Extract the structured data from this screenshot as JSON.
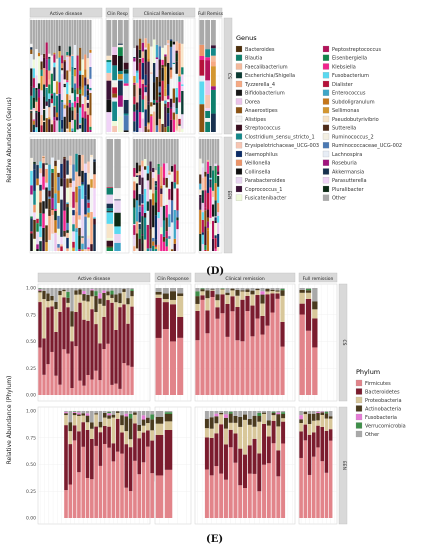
{
  "figure": {
    "panel_d_label": "(D)",
    "panel_e_label": "(E)"
  },
  "chart_data": [
    {
      "type": "bar",
      "panel": "D",
      "stacked": true,
      "ylabel": "Relative Abundance (Genus)",
      "ylim": [
        0,
        1
      ],
      "facet_columns": [
        "Active disease",
        "Clin Resp",
        "Clinical Remission",
        "Full Remiss"
      ],
      "facet_rows": [
        "CS",
        "EEN"
      ],
      "legend_title": "Genus",
      "legend_placement": "right",
      "grid": true,
      "series": [
        {
          "name": "Bacteroides",
          "color": "#4d2f0c"
        },
        {
          "name": "Blautia",
          "color": "#0e7f6b"
        },
        {
          "name": "Faecalibacterium",
          "color": "#f4b99b"
        },
        {
          "name": "Escherichia/Shigella",
          "color": "#0a3b33"
        },
        {
          "name": "Tyzzerella_4",
          "color": "#f6a983"
        },
        {
          "name": "Bifidobacterium",
          "color": "#171717"
        },
        {
          "name": "Dorea",
          "color": "#ebc3ea"
        },
        {
          "name": "Anaerostipes",
          "color": "#8b5212"
        },
        {
          "name": "Alistipes",
          "color": "#f2f2f2"
        },
        {
          "name": "Streptococcus",
          "color": "#3a0f20"
        },
        {
          "name": "Clostridium_sensu_stricto_1",
          "color": "#14888a"
        },
        {
          "name": "Erysipelotrichaceae_UCG-003",
          "color": "#f7c5b2"
        },
        {
          "name": "Haemophilus",
          "color": "#0b2b66"
        },
        {
          "name": "Veillonella",
          "color": "#ec9468"
        },
        {
          "name": "Collinsella",
          "color": "#111111"
        },
        {
          "name": "Parabacteroides",
          "color": "#e8d4f1"
        },
        {
          "name": "Coprococcus_1",
          "color": "#3b1236"
        },
        {
          "name": "Fusicatenibacter",
          "color": "#eefad8"
        },
        {
          "name": "Peptostreptococcus",
          "color": "#b3135a"
        },
        {
          "name": "Eisenbergiella",
          "color": "#12864a"
        },
        {
          "name": "Klebsiella",
          "color": "#f1238d"
        },
        {
          "name": "Fusobacterium",
          "color": "#59d9f0"
        },
        {
          "name": "Dialister",
          "color": "#b5123a"
        },
        {
          "name": "Enterococcus",
          "color": "#3ea5c7"
        },
        {
          "name": "Subdoligranulum",
          "color": "#c5761a"
        },
        {
          "name": "Sellimonas",
          "color": "#d39630"
        },
        {
          "name": "Pseudobutyrivibrio",
          "color": "#f7e4c8"
        },
        {
          "name": "Sutterella",
          "color": "#4e2a17"
        },
        {
          "name": "Ruminococcus_2",
          "color": "#f3efe2"
        },
        {
          "name": "Ruminococcaceae_UCG-002",
          "color": "#4b79b3"
        },
        {
          "name": "Lachnospira",
          "color": "#e7edf5"
        },
        {
          "name": "Roseburia",
          "color": "#a0147e"
        },
        {
          "name": "Akkermansia",
          "color": "#18314f"
        },
        {
          "name": "Parasutterella",
          "color": "#f0d3f7"
        },
        {
          "name": "Pluralibacter",
          "color": "#0c2a15"
        },
        {
          "name": "Other",
          "color": "#a9a9a9"
        }
      ],
      "bar_counts": {
        "CS": [
          24,
          4,
          18,
          3
        ],
        "EEN": [
          22,
          2,
          17,
          8
        ]
      },
      "other_fraction": {
        "CS": [
          0.28,
          0.3,
          0.2,
          0.22
        ],
        "EEN": [
          0.18,
          0.35,
          0.22,
          0.25
        ]
      }
    },
    {
      "type": "bar",
      "panel": "E",
      "stacked": true,
      "ylabel": "Relative Abundance (Phylum)",
      "ylim": [
        0,
        1
      ],
      "yticks": [
        "0.00",
        "0.25",
        "0.50",
        "0.75",
        "1.00"
      ],
      "facet_columns": [
        "Active disease",
        "Clin Response",
        "Clinical remission",
        "Full remission"
      ],
      "facet_rows": [
        "CS",
        "EEN"
      ],
      "legend_title": "Phylum",
      "legend_placement": "right",
      "grid": true,
      "series": [
        {
          "name": "Firmicutes",
          "color": "#e2848a"
        },
        {
          "name": "Bacteroidetes",
          "color": "#7b1c2e"
        },
        {
          "name": "Proteobacteria",
          "color": "#d8c79a"
        },
        {
          "name": "Actinobacteria",
          "color": "#4a3a1e"
        },
        {
          "name": "Fusobacteria",
          "color": "#e67bd6"
        },
        {
          "name": "Verrucomicrobia",
          "color": "#3e8f49"
        },
        {
          "name": "Other",
          "color": "#a9a9a9"
        }
      ],
      "bar_counts": {
        "CS": [
          24,
          4,
          18,
          3
        ],
        "EEN": [
          22,
          2,
          17,
          8
        ]
      },
      "firmicutes_mean": {
        "CS": [
          0.3,
          0.6,
          0.68,
          0.55
        ],
        "EEN": [
          0.48,
          0.5,
          0.5,
          0.6
        ]
      }
    }
  ]
}
